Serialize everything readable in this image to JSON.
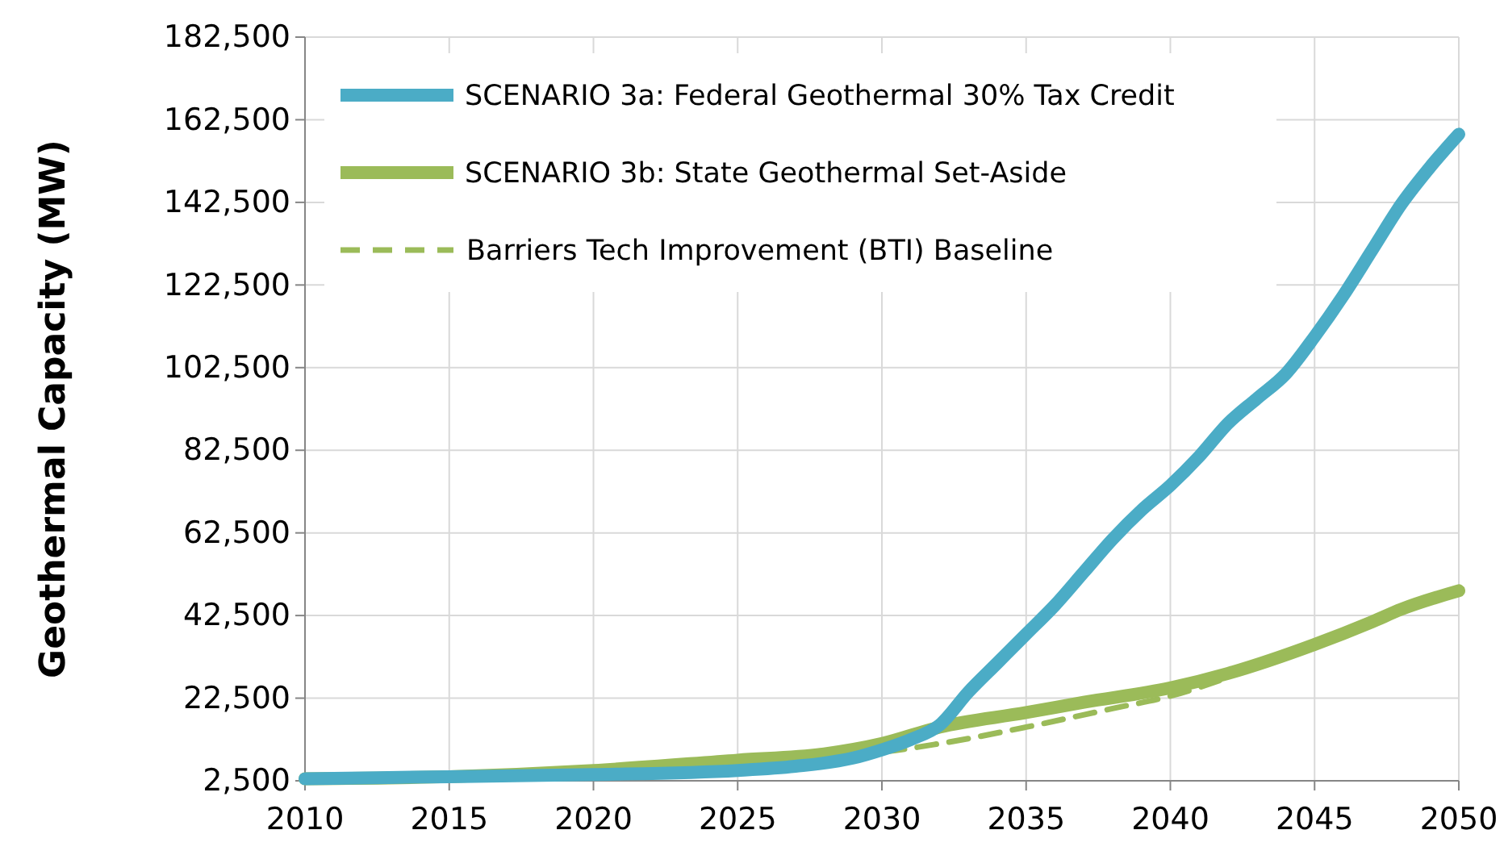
{
  "chart_data": {
    "type": "line",
    "ylabel": "Geothermal Capacity (MW)",
    "xlim": [
      2010,
      2050
    ],
    "xticks": [
      2010,
      2015,
      2020,
      2025,
      2030,
      2035,
      2040,
      2045,
      2050
    ],
    "ylim": [
      2500,
      182500
    ],
    "yticks": [
      {
        "value": 2500,
        "label": "2,500"
      },
      {
        "value": 22500,
        "label": "22,500"
      },
      {
        "value": 42500,
        "label": "42,500"
      },
      {
        "value": 62500,
        "label": "62,500"
      },
      {
        "value": 82500,
        "label": "82,500"
      },
      {
        "value": 102500,
        "label": "102,500"
      },
      {
        "value": 122500,
        "label": "122,500"
      },
      {
        "value": 142500,
        "label": "142,500"
      },
      {
        "value": 162500,
        "label": "162,500"
      },
      {
        "value": 182500,
        "label": "182,500"
      }
    ],
    "grid": true,
    "legend": "top left",
    "marker": "none",
    "series": [
      {
        "name": "SCENARIO 3a: Federal Geothermal 30% Tax Credit",
        "color": "#4bacc6",
        "line_style": "solid",
        "x": [
          2010,
          2015,
          2020,
          2025,
          2027,
          2029,
          2030,
          2031,
          2032,
          2033,
          2034,
          2035,
          2036,
          2037,
          2038,
          2039,
          2040,
          2041,
          2042,
          2043,
          2044,
          2045,
          2046,
          2047,
          2048,
          2049,
          2050
        ],
        "values": [
          3000,
          3500,
          4000,
          5000,
          6000,
          8000,
          10000,
          12500,
          16000,
          24000,
          31000,
          38000,
          45000,
          53000,
          61000,
          68000,
          74000,
          81000,
          89000,
          95000,
          101000,
          110000,
          120000,
          131000,
          142000,
          151000,
          159000
        ]
      },
      {
        "name": "SCENARIO 3b: State Geothermal Set-Aside",
        "color": "#9bbb59",
        "line_style": "solid",
        "x": [
          2010,
          2015,
          2020,
          2025,
          2028,
          2030,
          2032,
          2035,
          2037,
          2040,
          2042,
          2045,
          2047,
          2048,
          2050
        ],
        "values": [
          3000,
          3500,
          5000,
          7500,
          9000,
          11500,
          15500,
          19000,
          21500,
          25000,
          28500,
          35500,
          41000,
          44000,
          48500
        ]
      },
      {
        "name": "Barriers Tech Improvement (BTI) Baseline",
        "color": "#9bbb59",
        "line_style": "dashed",
        "x": [
          2029,
          2030,
          2032,
          2035,
          2038,
          2040,
          2042
        ],
        "values": [
          9000,
          9500,
          11500,
          15500,
          20000,
          23000,
          27500
        ]
      }
    ]
  }
}
